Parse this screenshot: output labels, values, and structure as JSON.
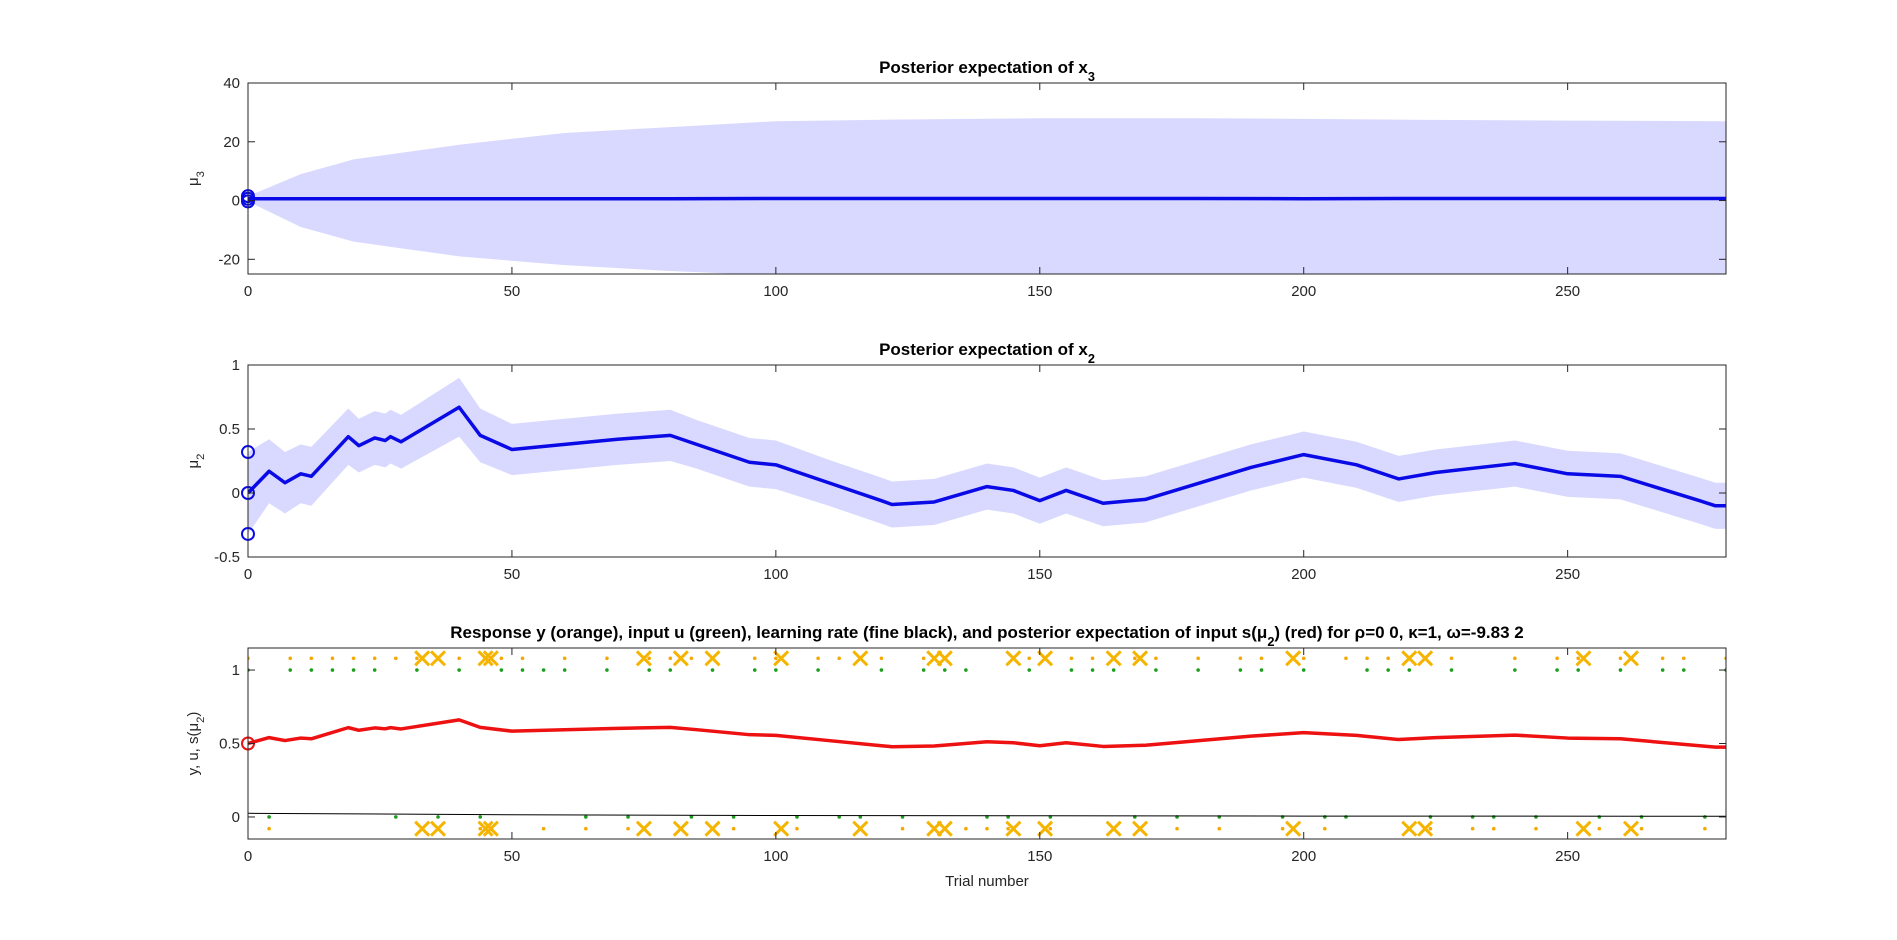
{
  "chart_data": [
    {
      "type": "line",
      "title": [
        "Posterior expectation of x",
        "3"
      ],
      "ylabel": [
        "μ",
        "3"
      ],
      "xlim": [
        0,
        280
      ],
      "xticks": [
        0,
        50,
        100,
        150,
        200,
        250
      ],
      "ylim": [
        -25,
        40
      ],
      "yticks": [
        -20,
        0,
        20,
        40
      ],
      "series": [
        {
          "style": "band",
          "color": "#d9d9ff",
          "x": [
            0,
            10,
            20,
            40,
            60,
            80,
            100,
            120,
            150,
            180,
            200,
            220,
            250,
            280
          ],
          "upper": [
            1.5,
            9,
            14,
            19,
            23,
            25,
            27,
            27.5,
            28,
            28,
            27.8,
            27.5,
            27.2,
            27
          ],
          "lower": [
            -0.3,
            -9,
            -14,
            -19,
            -22,
            -24,
            -25.5,
            -26,
            -26.5,
            -26.5,
            -26.3,
            -26,
            -25.8,
            -25.5
          ]
        },
        {
          "style": "line",
          "color": "#0a0ae6",
          "x": [
            0,
            10,
            20,
            40,
            60,
            80,
            100,
            120,
            150,
            180,
            200,
            220,
            250,
            280
          ],
          "values": [
            0.6,
            0.6,
            0.6,
            0.6,
            0.6,
            0.6,
            0.7,
            0.7,
            0.7,
            0.7,
            0.6,
            0.7,
            0.7,
            0.7
          ]
        },
        {
          "style": "circles",
          "color": "#0a0ae6",
          "x": [
            0,
            0,
            0
          ],
          "values": [
            1.5,
            0.6,
            -0.3
          ]
        }
      ]
    },
    {
      "type": "line",
      "title": [
        "Posterior expectation of x",
        "2"
      ],
      "ylabel": [
        "μ",
        "2"
      ],
      "xlim": [
        0,
        280
      ],
      "xticks": [
        0,
        50,
        100,
        150,
        200,
        250
      ],
      "ylim": [
        -0.5,
        1
      ],
      "yticks": [
        -0.5,
        0,
        0.5,
        1
      ],
      "series": [
        {
          "style": "band",
          "color": "#d9d9ff",
          "x": [
            0,
            4,
            7,
            10,
            12,
            19,
            21,
            24,
            26,
            27,
            29,
            40,
            44,
            50,
            60,
            70,
            80,
            85,
            95,
            100,
            110,
            120,
            122,
            130,
            140,
            145,
            150,
            155,
            162,
            170,
            190,
            200,
            210,
            218,
            225,
            240,
            250,
            260,
            275,
            278,
            280
          ],
          "upper": [
            0.32,
            0.42,
            0.32,
            0.38,
            0.36,
            0.66,
            0.58,
            0.64,
            0.62,
            0.65,
            0.61,
            0.9,
            0.66,
            0.54,
            0.58,
            0.62,
            0.65,
            0.57,
            0.43,
            0.41,
            0.26,
            0.12,
            0.09,
            0.11,
            0.23,
            0.2,
            0.12,
            0.2,
            0.1,
            0.13,
            0.38,
            0.48,
            0.4,
            0.29,
            0.34,
            0.41,
            0.33,
            0.31,
            0.12,
            0.08,
            0.08
          ],
          "lower": [
            -0.32,
            -0.08,
            -0.16,
            -0.08,
            -0.1,
            0.22,
            0.16,
            0.22,
            0.2,
            0.23,
            0.19,
            0.44,
            0.24,
            0.14,
            0.18,
            0.22,
            0.25,
            0.19,
            0.05,
            0.03,
            -0.1,
            -0.24,
            -0.27,
            -0.25,
            -0.13,
            -0.16,
            -0.24,
            -0.16,
            -0.26,
            -0.23,
            0.02,
            0.12,
            0.04,
            -0.07,
            -0.02,
            0.05,
            -0.03,
            -0.05,
            -0.24,
            -0.28,
            -0.28
          ]
        },
        {
          "style": "line",
          "color": "#0a0ae6",
          "x": [
            0,
            4,
            7,
            10,
            12,
            19,
            21,
            24,
            26,
            27,
            29,
            40,
            44,
            50,
            60,
            70,
            80,
            85,
            95,
            100,
            110,
            120,
            122,
            130,
            140,
            145,
            150,
            155,
            162,
            170,
            190,
            200,
            210,
            218,
            225,
            240,
            250,
            260,
            275,
            278,
            280
          ],
          "values": [
            0,
            0.17,
            0.08,
            0.15,
            0.13,
            0.44,
            0.37,
            0.43,
            0.41,
            0.44,
            0.4,
            0.67,
            0.45,
            0.34,
            0.38,
            0.42,
            0.45,
            0.38,
            0.24,
            0.22,
            0.08,
            -0.06,
            -0.09,
            -0.07,
            0.05,
            0.02,
            -0.06,
            0.02,
            -0.08,
            -0.05,
            0.2,
            0.3,
            0.22,
            0.11,
            0.16,
            0.23,
            0.15,
            0.13,
            -0.06,
            -0.1,
            -0.1
          ]
        },
        {
          "style": "circles",
          "color": "#0a0ae6",
          "x": [
            0,
            0,
            0
          ],
          "values": [
            0.32,
            0,
            -0.32
          ]
        }
      ]
    },
    {
      "type": "line",
      "title": [
        "Response y (orange), input u (green), learning rate (fine black), and posterior expectation of input s(μ",
        "2",
        ") (red) for ρ=0  0, κ=1, ω=-9.83          2"
      ],
      "ylabel": [
        "y, u, s(μ",
        "2",
        ")"
      ],
      "xlabel": "Trial number",
      "xlim": [
        0,
        280
      ],
      "xticks": [
        0,
        50,
        100,
        150,
        200,
        250
      ],
      "ylim": [
        -0.15,
        1.15
      ],
      "yticks": [
        0,
        0.5,
        1
      ],
      "series": [
        {
          "style": "dots",
          "color": "#1e9e1e",
          "x": [
            0,
            4,
            8,
            12,
            16,
            20,
            24,
            28,
            32,
            36,
            40,
            44,
            48,
            52,
            56,
            60,
            64,
            68,
            72,
            76,
            80,
            84,
            88,
            92,
            96,
            100,
            104,
            108,
            112,
            116,
            120,
            124,
            128,
            132,
            136,
            140,
            144,
            148,
            152,
            156,
            160,
            164,
            168,
            172,
            176,
            180,
            184,
            188,
            192,
            196,
            200,
            204,
            208,
            212,
            216,
            220,
            224,
            228,
            232,
            236,
            240,
            244,
            248,
            252,
            256,
            260,
            264,
            268,
            272,
            276,
            280
          ],
          "values": [
            1,
            0,
            1,
            1,
            1,
            1,
            1,
            0,
            1,
            0,
            1,
            0,
            1,
            1,
            1,
            1,
            0,
            1,
            0,
            1,
            1,
            0,
            1,
            0,
            1,
            1,
            0,
            1,
            0,
            0,
            1,
            0,
            1,
            1,
            1,
            0,
            0,
            1,
            0,
            1,
            1,
            1,
            0,
            1,
            0,
            1,
            0,
            1,
            1,
            0,
            1,
            0,
            0,
            1,
            1,
            1,
            0,
            1,
            0,
            0,
            1,
            0,
            1,
            1,
            0,
            1,
            0,
            1,
            1,
            0,
            1
          ]
        },
        {
          "style": "dots",
          "color": "#f5a800",
          "x": [
            0,
            4,
            8,
            12,
            16,
            20,
            24,
            28,
            32,
            36,
            40,
            44,
            48,
            52,
            56,
            60,
            64,
            68,
            72,
            76,
            80,
            84,
            88,
            92,
            96,
            100,
            104,
            108,
            112,
            116,
            120,
            124,
            128,
            132,
            136,
            140,
            144,
            148,
            152,
            156,
            160,
            164,
            168,
            172,
            176,
            180,
            184,
            188,
            192,
            196,
            200,
            204,
            208,
            212,
            216,
            220,
            224,
            228,
            232,
            236,
            240,
            244,
            248,
            252,
            256,
            260,
            264,
            268,
            272,
            276,
            280
          ],
          "values": [
            1.08,
            -0.08,
            1.08,
            1.08,
            1.08,
            1.08,
            1.08,
            1.08,
            1.08,
            -0.08,
            1.08,
            -0.08,
            1.08,
            1.08,
            -0.08,
            1.08,
            -0.08,
            1.08,
            -0.08,
            1.08,
            1.08,
            1.08,
            1.08,
            -0.08,
            1.08,
            1.08,
            -0.08,
            1.08,
            1.08,
            -0.08,
            1.08,
            -0.08,
            1.08,
            1.08,
            -0.08,
            -0.08,
            -0.08,
            1.08,
            -0.08,
            1.08,
            1.08,
            1.08,
            1.08,
            1.08,
            -0.08,
            1.08,
            -0.08,
            1.08,
            1.08,
            -0.08,
            1.08,
            -0.08,
            1.08,
            1.08,
            1.08,
            1.08,
            -0.08,
            1.08,
            -0.08,
            -0.08,
            1.08,
            -0.08,
            1.08,
            1.08,
            -0.08,
            1.08,
            -0.08,
            1.08,
            1.08,
            -0.08,
            1.08
          ]
        },
        {
          "style": "crosses",
          "color": "#f5b400",
          "x": [
            33,
            36,
            45,
            46,
            75,
            82,
            88,
            101,
            116,
            130,
            132,
            145,
            151,
            164,
            169,
            198,
            220,
            223,
            253,
            262,
            33,
            36,
            45,
            46,
            75,
            82,
            88,
            101,
            116,
            130,
            132,
            145,
            151,
            164,
            169,
            198,
            220,
            223,
            253,
            262
          ],
          "values": [
            1.08,
            1.08,
            1.08,
            1.08,
            1.08,
            1.08,
            1.08,
            1.08,
            1.08,
            1.08,
            1.08,
            1.08,
            1.08,
            1.08,
            1.08,
            1.08,
            1.08,
            1.08,
            1.08,
            1.08,
            -0.08,
            -0.08,
            -0.08,
            -0.08,
            -0.08,
            -0.08,
            -0.08,
            -0.08,
            -0.08,
            -0.08,
            -0.08,
            -0.08,
            -0.08,
            -0.08,
            -0.08,
            -0.08,
            -0.08,
            -0.08,
            -0.08,
            -0.08
          ]
        },
        {
          "style": "thin",
          "color": "#000000",
          "x": [
            0,
            50,
            100,
            150,
            200,
            280
          ],
          "values": [
            0.025,
            0.015,
            0.01,
            0.008,
            0.006,
            0.005
          ]
        },
        {
          "style": "line",
          "color": "#ee1111",
          "x": [
            0,
            4,
            7,
            10,
            12,
            19,
            21,
            24,
            26,
            27,
            29,
            40,
            44,
            50,
            60,
            70,
            80,
            85,
            95,
            100,
            110,
            120,
            122,
            130,
            140,
            145,
            150,
            155,
            162,
            170,
            190,
            200,
            210,
            218,
            225,
            240,
            250,
            260,
            275,
            278,
            280
          ],
          "values": [
            0.5,
            0.54,
            0.52,
            0.537,
            0.532,
            0.608,
            0.59,
            0.606,
            0.6,
            0.608,
            0.599,
            0.661,
            0.61,
            0.584,
            0.594,
            0.603,
            0.61,
            0.594,
            0.56,
            0.555,
            0.52,
            0.485,
            0.478,
            0.483,
            0.512,
            0.505,
            0.485,
            0.505,
            0.48,
            0.488,
            0.55,
            0.574,
            0.555,
            0.527,
            0.54,
            0.557,
            0.537,
            0.532,
            0.485,
            0.475,
            0.475
          ]
        },
        {
          "style": "circles",
          "color": "#ee1111",
          "x": [
            0
          ],
          "values": [
            0.5
          ]
        }
      ]
    }
  ]
}
